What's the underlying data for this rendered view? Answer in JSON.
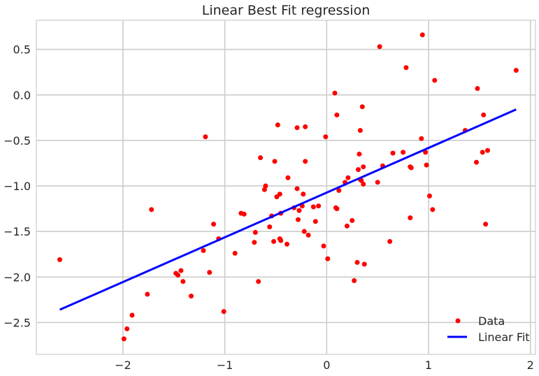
{
  "chart_data": {
    "type": "scatter",
    "title": "Linear Best Fit regression",
    "xlabel": "",
    "ylabel": "",
    "xlim": [
      -2.85,
      2.05
    ],
    "ylim": [
      -2.85,
      0.82
    ],
    "xticks": [
      -2,
      -1,
      0,
      1,
      2
    ],
    "xtick_labels": [
      "−2",
      "−1",
      "0",
      "1",
      "2"
    ],
    "yticks": [
      -2.5,
      -2.0,
      -1.5,
      -1.0,
      -0.5,
      0.0,
      0.5
    ],
    "ytick_labels": [
      "−2.5",
      "−2.0",
      "−1.5",
      "−1.0",
      "−0.5",
      "0.0",
      "0.5"
    ],
    "grid": true,
    "legend_position": "bottom-right",
    "series": [
      {
        "name": "Data",
        "kind": "scatter",
        "color": "#ff0000",
        "points": [
          [
            -2.62,
            -1.81
          ],
          [
            -1.99,
            -2.68
          ],
          [
            -1.96,
            -2.57
          ],
          [
            -1.91,
            -2.42
          ],
          [
            -1.76,
            -2.19
          ],
          [
            -1.72,
            -1.26
          ],
          [
            -1.48,
            -1.96
          ],
          [
            -1.46,
            -1.98
          ],
          [
            -1.43,
            -1.93
          ],
          [
            -1.41,
            -2.05
          ],
          [
            -1.33,
            -2.21
          ],
          [
            -1.21,
            -1.71
          ],
          [
            -1.19,
            -0.46
          ],
          [
            -1.15,
            -1.95
          ],
          [
            -1.11,
            -1.42
          ],
          [
            -1.06,
            -1.58
          ],
          [
            -1.01,
            -2.38
          ],
          [
            -0.9,
            -1.74
          ],
          [
            -0.84,
            -1.3
          ],
          [
            -0.81,
            -1.31
          ],
          [
            -0.71,
            -1.62
          ],
          [
            -0.7,
            -1.51
          ],
          [
            -0.67,
            -2.05
          ],
          [
            -0.65,
            -0.69
          ],
          [
            -0.61,
            -1.04
          ],
          [
            -0.6,
            -1.0
          ],
          [
            -0.56,
            -1.45
          ],
          [
            -0.54,
            -1.33
          ],
          [
            -0.52,
            -1.61
          ],
          [
            -0.51,
            -0.73
          ],
          [
            -0.49,
            -1.12
          ],
          [
            -0.48,
            -0.33
          ],
          [
            -0.46,
            -1.58
          ],
          [
            -0.46,
            -1.09
          ],
          [
            -0.45,
            -1.6
          ],
          [
            -0.45,
            -1.3
          ],
          [
            -0.39,
            -1.64
          ],
          [
            -0.38,
            -0.91
          ],
          [
            -0.32,
            -1.24
          ],
          [
            -0.29,
            -0.36
          ],
          [
            -0.29,
            -1.03
          ],
          [
            -0.28,
            -1.37
          ],
          [
            -0.27,
            -1.27
          ],
          [
            -0.24,
            -1.22
          ],
          [
            -0.23,
            -1.09
          ],
          [
            -0.22,
            -1.5
          ],
          [
            -0.21,
            -0.35
          ],
          [
            -0.21,
            -0.73
          ],
          [
            -0.18,
            -1.54
          ],
          [
            -0.13,
            -1.23
          ],
          [
            -0.11,
            -1.39
          ],
          [
            -0.08,
            -1.22
          ],
          [
            -0.03,
            -1.66
          ],
          [
            -0.01,
            -0.46
          ],
          [
            0.01,
            -1.8
          ],
          [
            0.08,
            0.02
          ],
          [
            0.09,
            -1.24
          ],
          [
            0.1,
            -0.22
          ],
          [
            0.1,
            -1.25
          ],
          [
            0.12,
            -1.05
          ],
          [
            0.18,
            -0.96
          ],
          [
            0.2,
            -1.44
          ],
          [
            0.21,
            -0.91
          ],
          [
            0.25,
            -1.38
          ],
          [
            0.27,
            -2.04
          ],
          [
            0.3,
            -1.84
          ],
          [
            0.31,
            -0.82
          ],
          [
            0.32,
            -0.65
          ],
          [
            0.33,
            -0.93
          ],
          [
            0.33,
            -0.39
          ],
          [
            0.34,
            -0.94
          ],
          [
            0.35,
            -0.13
          ],
          [
            0.36,
            -0.98
          ],
          [
            0.36,
            -0.79
          ],
          [
            0.37,
            -1.86
          ],
          [
            0.5,
            -0.96
          ],
          [
            0.52,
            0.53
          ],
          [
            0.55,
            -0.78
          ],
          [
            0.62,
            -1.61
          ],
          [
            0.65,
            -0.64
          ],
          [
            0.75,
            -0.63
          ],
          [
            0.78,
            0.3
          ],
          [
            0.82,
            -0.79
          ],
          [
            0.82,
            -1.35
          ],
          [
            0.83,
            -0.8
          ],
          [
            0.93,
            -0.48
          ],
          [
            0.94,
            0.66
          ],
          [
            0.97,
            -0.63
          ],
          [
            0.98,
            -0.77
          ],
          [
            1.01,
            -1.11
          ],
          [
            1.04,
            -1.26
          ],
          [
            1.06,
            0.16
          ],
          [
            1.36,
            -0.39
          ],
          [
            1.47,
            -0.74
          ],
          [
            1.48,
            0.07
          ],
          [
            1.53,
            -0.63
          ],
          [
            1.54,
            -0.22
          ],
          [
            1.56,
            -1.42
          ],
          [
            1.58,
            -0.61
          ],
          [
            1.86,
            0.27
          ]
        ]
      },
      {
        "name": "Linear Fit",
        "kind": "line",
        "color": "#0000ff",
        "points": [
          [
            -2.62,
            -2.36
          ],
          [
            1.86,
            -0.16
          ]
        ]
      }
    ]
  }
}
